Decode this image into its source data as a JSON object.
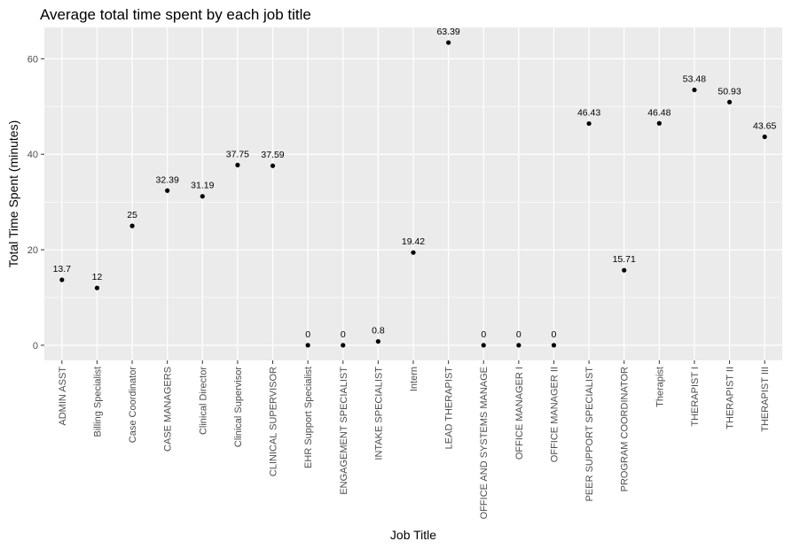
{
  "chart_data": {
    "type": "scatter",
    "title": "Average total time spent by each job title",
    "xlabel": "Job Title",
    "ylabel": "Total Time Spent (minutes)",
    "ylim": [
      -3.17,
      66.56
    ],
    "yticks": [
      0,
      20,
      40,
      60
    ],
    "grid": true,
    "legend": "none",
    "colors": {
      "panel": "#ebebeb",
      "grid": "#ffffff",
      "point": "#000000",
      "tick": "#4d4d4d"
    },
    "categories": [
      "ADMIN ASST",
      "Billing Specialist",
      "Case Coordinator",
      "CASE MANAGERS",
      "Clinical Director",
      "Clinical Supervisor",
      "CLINICAL SUPERVISOR",
      "EHR Support Specialist",
      "ENGAGEMENT SPECIALIST",
      "INTAKE SPECIALIST",
      "Intern",
      "LEAD THERAPIST",
      "OFFICE AND SYSTEMS MANAGE",
      "OFFICE MANAGER I",
      "OFFICE MANAGER II",
      "PEER SUPPORT SPECIALIST",
      "PROGRAM COORDINATOR",
      "Therapist",
      "THERAPIST I",
      "THERAPIST II",
      "THERAPIST III"
    ],
    "values": [
      13.7,
      12,
      25,
      32.39,
      31.19,
      37.75,
      37.59,
      0,
      0,
      0.8,
      19.42,
      63.39,
      0,
      0,
      0,
      46.43,
      15.71,
      46.48,
      53.48,
      50.93,
      43.65
    ],
    "labels": [
      "13.7",
      "12",
      "25",
      "32.39",
      "31.19",
      "37.75",
      "37.59",
      "0",
      "0",
      "0.8",
      "19.42",
      "63.39",
      "0",
      "0",
      "0",
      "46.43",
      "15.71",
      "46.48",
      "53.48",
      "50.93",
      "43.65"
    ]
  }
}
